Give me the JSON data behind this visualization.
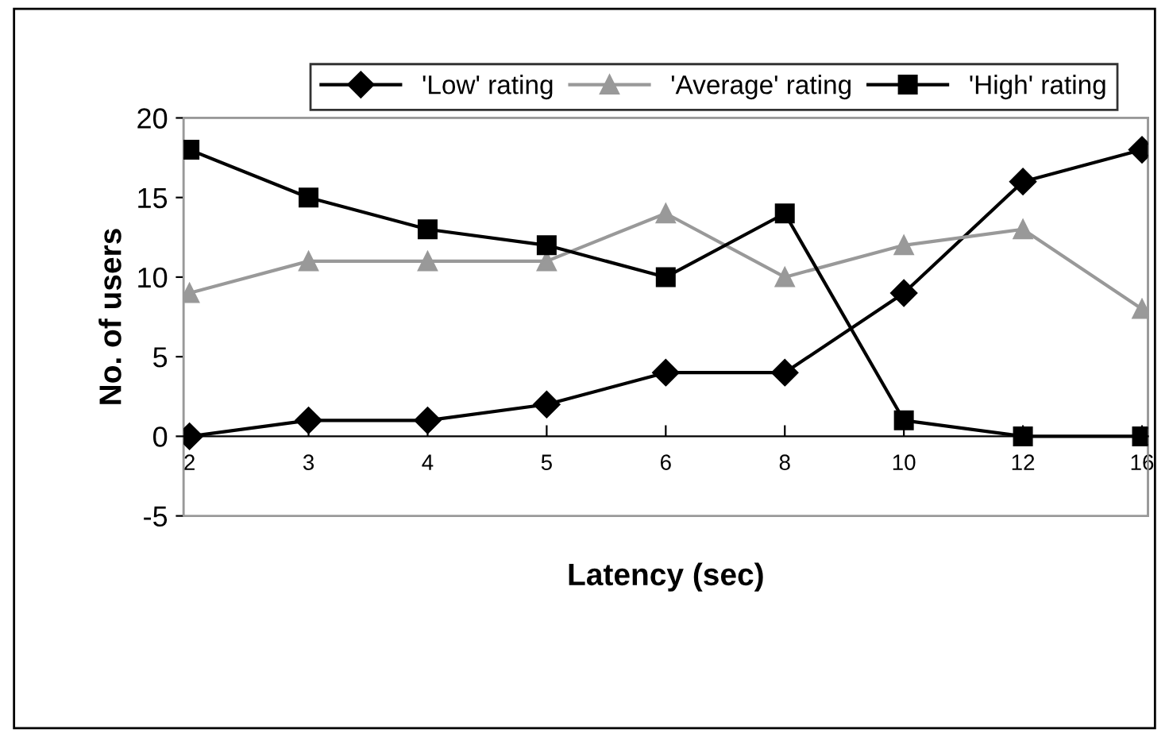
{
  "chart_data": {
    "type": "line",
    "xlabel": "Latency (sec)",
    "ylabel": "No. of users",
    "categories": [
      "2",
      "3",
      "4",
      "5",
      "6",
      "8",
      "10",
      "12",
      "16"
    ],
    "ylim": [
      -5,
      20
    ],
    "yticks": [
      -5,
      0,
      5,
      10,
      15,
      20
    ],
    "grid": false,
    "legend": "top",
    "series": [
      {
        "name": "'Low' rating",
        "color": "#000000",
        "marker": "diamond",
        "values": [
          0,
          1,
          1,
          2,
          4,
          4,
          9,
          16,
          18
        ]
      },
      {
        "name": "'Average' rating",
        "color": "#999999",
        "marker": "triangle",
        "values": [
          9,
          11,
          11,
          11,
          14,
          10,
          12,
          13,
          8
        ]
      },
      {
        "name": "'High' rating",
        "color": "#000000",
        "marker": "square",
        "values": [
          18,
          15,
          13,
          12,
          10,
          14,
          1,
          0,
          0
        ]
      }
    ]
  }
}
